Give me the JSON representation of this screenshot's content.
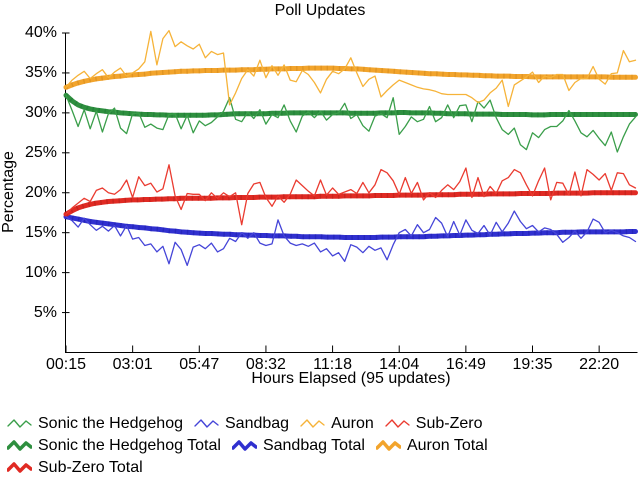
{
  "page": {
    "background": "#ffffff",
    "text_color": "#000000"
  },
  "chart_data": {
    "type": "line",
    "title": "Poll Updates",
    "xlabel": "Hours Elapsed (95 updates)",
    "ylabel": "Percentage",
    "grid": false,
    "legend_position": "bottom",
    "n_points": 95,
    "ylim": [
      0,
      40
    ],
    "y_ticks": [
      5,
      10,
      15,
      20,
      25,
      30,
      35,
      40
    ],
    "y_tick_labels": [
      "5%",
      "10%",
      "15%",
      "20%",
      "25%",
      "30%",
      "35%",
      "40%"
    ],
    "x_tick_indices": [
      1,
      12,
      23,
      34,
      45,
      56,
      67,
      78,
      89
    ],
    "x_tick_labels": [
      "00:15",
      "03:01",
      "05:47",
      "08:32",
      "11:18",
      "14:04",
      "16:49",
      "19:35",
      "22:20"
    ],
    "legend_rows": [
      [
        0,
        1,
        2,
        3
      ],
      [
        4,
        5,
        6
      ],
      [
        7
      ]
    ],
    "series": [
      {
        "name": "Sonic the Hedgehog",
        "color": "#3a9e4a",
        "width": 1,
        "values": [
          32.2,
          30.3,
          28.3,
          30.4,
          28.0,
          30.2,
          27.6,
          29.9,
          30.6,
          28.1,
          27.4,
          29.9,
          30.0,
          28.2,
          28.6,
          28.1,
          27.9,
          29.8,
          29.9,
          28.0,
          29.7,
          27.5,
          29.0,
          28.4,
          28.8,
          29.5,
          30.2,
          31.9,
          29.2,
          28.9,
          30.1,
          29.3,
          30.4,
          28.6,
          29.8,
          29.4,
          31.0,
          29.0,
          27.6,
          29.6,
          30.1,
          29.4,
          30.2,
          29.1,
          29.8,
          30.0,
          31.2,
          29.3,
          29.8,
          28.4,
          27.7,
          29.6,
          29.9,
          29.4,
          31.9,
          27.3,
          28.3,
          29.5,
          28.9,
          29.2,
          30.8,
          28.9,
          29.4,
          31.0,
          29.4,
          30.9,
          31.0,
          28.9,
          31.4,
          30.6,
          31.6,
          29.4,
          27.9,
          27.3,
          28.1,
          26.0,
          25.4,
          27.5,
          26.9,
          27.9,
          28.3,
          28.3,
          29.0,
          30.3,
          29.0,
          27.5,
          27.0,
          27.8,
          26.8,
          25.9,
          27.6,
          25.1,
          27.0,
          28.6,
          29.5
        ]
      },
      {
        "name": "Sandbag",
        "color": "#4545d8",
        "width": 1,
        "values": [
          17.0,
          16.5,
          15.7,
          16.8,
          16.0,
          15.3,
          15.8,
          15.2,
          15.9,
          14.6,
          15.9,
          14.2,
          14.4,
          13.4,
          13.6,
          12.6,
          13.3,
          11.1,
          13.8,
          12.9,
          10.9,
          13.2,
          13.5,
          13.0,
          13.7,
          12.6,
          13.0,
          14.3,
          13.9,
          15.0,
          14.3,
          15.0,
          13.7,
          13.4,
          13.6,
          16.6,
          14.6,
          13.7,
          13.4,
          13.6,
          13.3,
          13.7,
          12.6,
          13.0,
          12.1,
          12.5,
          11.4,
          13.5,
          13.2,
          12.5,
          13.3,
          12.8,
          13.1,
          11.6,
          13.5,
          15.0,
          15.4,
          14.6,
          16.0,
          15.0,
          15.4,
          16.9,
          16.2,
          14.5,
          16.4,
          14.7,
          16.6,
          15.3,
          14.9,
          15.9,
          14.7,
          16.3,
          15.1,
          16.2,
          17.7,
          16.4,
          15.5,
          15.9,
          15.1,
          15.6,
          15.4,
          14.8,
          13.8,
          14.4,
          15.2,
          14.3,
          15.1,
          16.7,
          16.3,
          15.0,
          15.3,
          15.0,
          14.6,
          14.4,
          13.9
        ]
      },
      {
        "name": "Auron",
        "color": "#f6b339",
        "width": 1,
        "values": [
          33.2,
          34.1,
          34.7,
          35.2,
          34.3,
          34.9,
          35.4,
          34.4,
          35.1,
          35.6,
          34.6,
          35.0,
          35.5,
          36.4,
          40.2,
          36.0,
          39.3,
          40.3,
          38.3,
          38.9,
          38.4,
          38.0,
          38.6,
          36.9,
          37.7,
          37.3,
          37.5,
          31.0,
          32.5,
          34.3,
          35.4,
          34.6,
          36.6,
          34.4,
          35.9,
          34.7,
          36.0,
          34.1,
          33.9,
          35.3,
          34.8,
          33.8,
          32.5,
          34.2,
          35.2,
          34.9,
          35.5,
          36.9,
          35.0,
          33.3,
          34.2,
          34.6,
          32.0,
          32.8,
          33.5,
          34.1,
          33.8,
          33.5,
          33.2,
          33.0,
          32.9,
          32.7,
          32.4,
          32.3,
          32.3,
          32.3,
          32.3,
          31.9,
          31.3,
          31.6,
          32.5,
          33.1,
          34.1,
          30.8,
          33.5,
          34.0,
          34.5,
          35.1,
          33.8,
          34.6,
          34.4,
          34.8,
          34.8,
          32.8,
          33.8,
          34.3,
          34.3,
          35.8,
          34.2,
          33.6,
          34.9,
          35.0,
          37.8,
          36.4,
          36.6
        ]
      },
      {
        "name": "Sub-Zero",
        "color": "#ea3b30",
        "width": 1,
        "values": [
          17.3,
          18.1,
          18.7,
          19.3,
          18.9,
          20.3,
          20.6,
          20.0,
          19.8,
          20.4,
          21.6,
          19.4,
          22.0,
          20.9,
          21.2,
          20.1,
          20.5,
          23.5,
          19.6,
          17.9,
          19.9,
          19.8,
          19.8,
          19.0,
          20.0,
          19.3,
          20.0,
          19.5,
          20.0,
          16.0,
          19.9,
          21.1,
          21.3,
          19.4,
          18.3,
          19.6,
          18.8,
          19.8,
          21.6,
          20.9,
          20.2,
          19.6,
          21.6,
          19.7,
          20.6,
          19.8,
          20.1,
          20.4,
          19.9,
          21.3,
          20.0,
          21.0,
          22.9,
          22.5,
          21.5,
          19.8,
          21.9,
          19.9,
          21.3,
          19.1,
          20.0,
          19.4,
          20.3,
          21.0,
          20.4,
          21.4,
          23.1,
          19.4,
          21.9,
          19.5,
          20.8,
          19.9,
          21.5,
          21.9,
          22.9,
          22.5,
          21.0,
          19.6,
          21.5,
          23.1,
          19.1,
          21.3,
          21.2,
          19.7,
          22.6,
          19.6,
          22.9,
          22.3,
          21.6,
          22.4,
          20.3,
          22.5,
          22.4,
          21.0,
          20.6
        ]
      },
      {
        "name": "Sonic the Hedgehog Total",
        "color": "#2e8f3f",
        "edge": "#1e7a33",
        "width": 5,
        "values": [
          32.2,
          31.5,
          31.0,
          30.7,
          30.5,
          30.35,
          30.25,
          30.15,
          30.1,
          30.0,
          29.95,
          29.9,
          29.85,
          29.8,
          29.8,
          29.75,
          29.75,
          29.7,
          29.7,
          29.7,
          29.7,
          29.7,
          29.7,
          29.7,
          29.75,
          29.75,
          29.8,
          29.85,
          29.9,
          29.9,
          29.9,
          29.9,
          29.9,
          29.9,
          29.95,
          29.95,
          29.95,
          30.0,
          30.0,
          30.0,
          30.0,
          30.0,
          30.0,
          30.0,
          30.0,
          30.0,
          30.0,
          29.95,
          29.95,
          29.95,
          29.95,
          29.95,
          30.0,
          30.0,
          30.0,
          30.05,
          30.05,
          30.0,
          30.0,
          30.0,
          30.0,
          29.95,
          29.95,
          29.9,
          29.9,
          29.9,
          29.9,
          29.85,
          29.85,
          29.85,
          29.85,
          29.85,
          29.8,
          29.8,
          29.8,
          29.8,
          29.8,
          29.75,
          29.75,
          29.75,
          29.8,
          29.8,
          29.8,
          29.8,
          29.8,
          29.8,
          29.8,
          29.8,
          29.8,
          29.8,
          29.8,
          29.8,
          29.8,
          29.8,
          29.8
        ]
      },
      {
        "name": "Sandbag Total",
        "color": "#3030cf",
        "edge": "#1f1fae",
        "width": 5,
        "values": [
          17.0,
          16.85,
          16.7,
          16.55,
          16.4,
          16.3,
          16.2,
          16.1,
          16.0,
          15.9,
          15.8,
          15.75,
          15.65,
          15.6,
          15.5,
          15.45,
          15.35,
          15.25,
          15.2,
          15.1,
          15.05,
          15.0,
          14.95,
          14.9,
          14.9,
          14.85,
          14.8,
          14.8,
          14.75,
          14.75,
          14.7,
          14.7,
          14.65,
          14.65,
          14.6,
          14.6,
          14.6,
          14.55,
          14.55,
          14.5,
          14.5,
          14.5,
          14.5,
          14.45,
          14.45,
          14.45,
          14.4,
          14.4,
          14.4,
          14.4,
          14.4,
          14.4,
          14.45,
          14.45,
          14.45,
          14.5,
          14.5,
          14.5,
          14.5,
          14.5,
          14.55,
          14.55,
          14.6,
          14.6,
          14.65,
          14.65,
          14.7,
          14.7,
          14.75,
          14.75,
          14.8,
          14.8,
          14.85,
          14.85,
          14.9,
          14.9,
          14.9,
          14.95,
          14.95,
          15.0,
          15.0,
          15.0,
          15.05,
          15.05,
          15.05,
          15.1,
          15.1,
          15.1,
          15.1,
          15.1,
          15.1,
          15.1,
          15.1,
          15.15,
          15.15
        ]
      },
      {
        "name": "Auron Total",
        "color": "#f2a42c",
        "edge": "#d4891c",
        "width": 5,
        "values": [
          33.2,
          33.5,
          33.75,
          33.95,
          34.1,
          34.25,
          34.35,
          34.45,
          34.55,
          34.6,
          34.7,
          34.75,
          34.8,
          34.85,
          34.95,
          35.0,
          35.05,
          35.1,
          35.15,
          35.2,
          35.2,
          35.25,
          35.25,
          35.3,
          35.3,
          35.3,
          35.35,
          35.35,
          35.35,
          35.4,
          35.4,
          35.4,
          35.45,
          35.45,
          35.5,
          35.5,
          35.5,
          35.55,
          35.55,
          35.55,
          35.6,
          35.6,
          35.6,
          35.6,
          35.6,
          35.55,
          35.55,
          35.5,
          35.5,
          35.45,
          35.4,
          35.35,
          35.3,
          35.25,
          35.2,
          35.15,
          35.1,
          35.05,
          35.0,
          34.95,
          34.9,
          34.9,
          34.85,
          34.8,
          34.8,
          34.75,
          34.75,
          34.7,
          34.7,
          34.65,
          34.65,
          34.6,
          34.6,
          34.6,
          34.55,
          34.55,
          34.55,
          34.5,
          34.5,
          34.5,
          34.5,
          34.5,
          34.5,
          34.5,
          34.5,
          34.5,
          34.5,
          34.5,
          34.5,
          34.5,
          34.45,
          34.45,
          34.45,
          34.45,
          34.45
        ]
      },
      {
        "name": "Sub-Zero Total",
        "color": "#e02a23",
        "edge": "#b51f19",
        "width": 5,
        "values": [
          17.3,
          17.75,
          18.1,
          18.35,
          18.55,
          18.7,
          18.8,
          18.9,
          18.95,
          19.0,
          19.05,
          19.1,
          19.1,
          19.15,
          19.15,
          19.2,
          19.2,
          19.25,
          19.25,
          19.3,
          19.3,
          19.3,
          19.3,
          19.3,
          19.3,
          19.35,
          19.35,
          19.35,
          19.4,
          19.4,
          19.4,
          19.4,
          19.45,
          19.45,
          19.45,
          19.45,
          19.5,
          19.5,
          19.5,
          19.5,
          19.5,
          19.5,
          19.55,
          19.55,
          19.55,
          19.55,
          19.6,
          19.6,
          19.6,
          19.6,
          19.6,
          19.65,
          19.65,
          19.65,
          19.65,
          19.7,
          19.7,
          19.7,
          19.7,
          19.7,
          19.75,
          19.75,
          19.75,
          19.75,
          19.75,
          19.8,
          19.8,
          19.8,
          19.8,
          19.8,
          19.85,
          19.85,
          19.85,
          19.85,
          19.85,
          19.9,
          19.9,
          19.9,
          19.9,
          19.9,
          19.9,
          19.95,
          19.95,
          19.95,
          19.95,
          19.95,
          19.95,
          20.0,
          20.0,
          20.0,
          20.0,
          20.0,
          20.0,
          20.0,
          20.0
        ]
      }
    ]
  }
}
